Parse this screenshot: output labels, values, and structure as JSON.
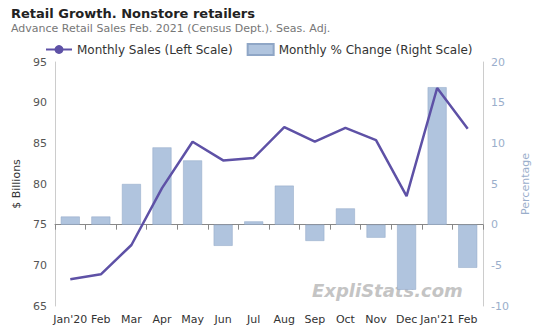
{
  "chart_data": {
    "type": "line",
    "title": "Retail Growth. Nonstore retailers",
    "subtitle": "Advance Retail Sales Feb. 2021 (Census Dept.). Seas. Adj.",
    "ylabel": "$ Billions",
    "y2label": "Percentage",
    "annotations": [
      "ExpliStats.com"
    ],
    "categories": [
      "Jan'20",
      "Feb",
      "Mar",
      "Apr",
      "May",
      "Jun",
      "Jul",
      "Aug",
      "Sep",
      "Oct",
      "Nov",
      "Dec",
      "Jan'21",
      "Feb"
    ],
    "series": [
      {
        "name": "Monthly Sales (Left Scale)",
        "type": "line",
        "axis": "y",
        "color": "#5e51a6",
        "values": [
          68.3,
          68.9,
          72.5,
          79.5,
          85.2,
          82.9,
          83.2,
          87.0,
          85.2,
          86.9,
          85.4,
          78.5,
          91.8,
          86.8
        ]
      },
      {
        "name": "Monthly % Change (Right Scale)",
        "type": "bar",
        "axis": "y2",
        "color": "#b0c4de",
        "values": [
          1.0,
          1.0,
          5.0,
          9.5,
          7.9,
          -2.6,
          0.4,
          4.8,
          -2.0,
          2.0,
          -1.6,
          -8.0,
          16.9,
          -5.3
        ]
      }
    ],
    "ylim": [
      65,
      95
    ],
    "yticks": [
      65,
      70,
      75,
      80,
      85,
      90,
      95
    ],
    "y2lim": [
      -10,
      20
    ],
    "y2ticks": [
      -10,
      -5,
      0,
      5,
      10,
      15,
      20
    ],
    "grid": false,
    "legend": "top"
  }
}
